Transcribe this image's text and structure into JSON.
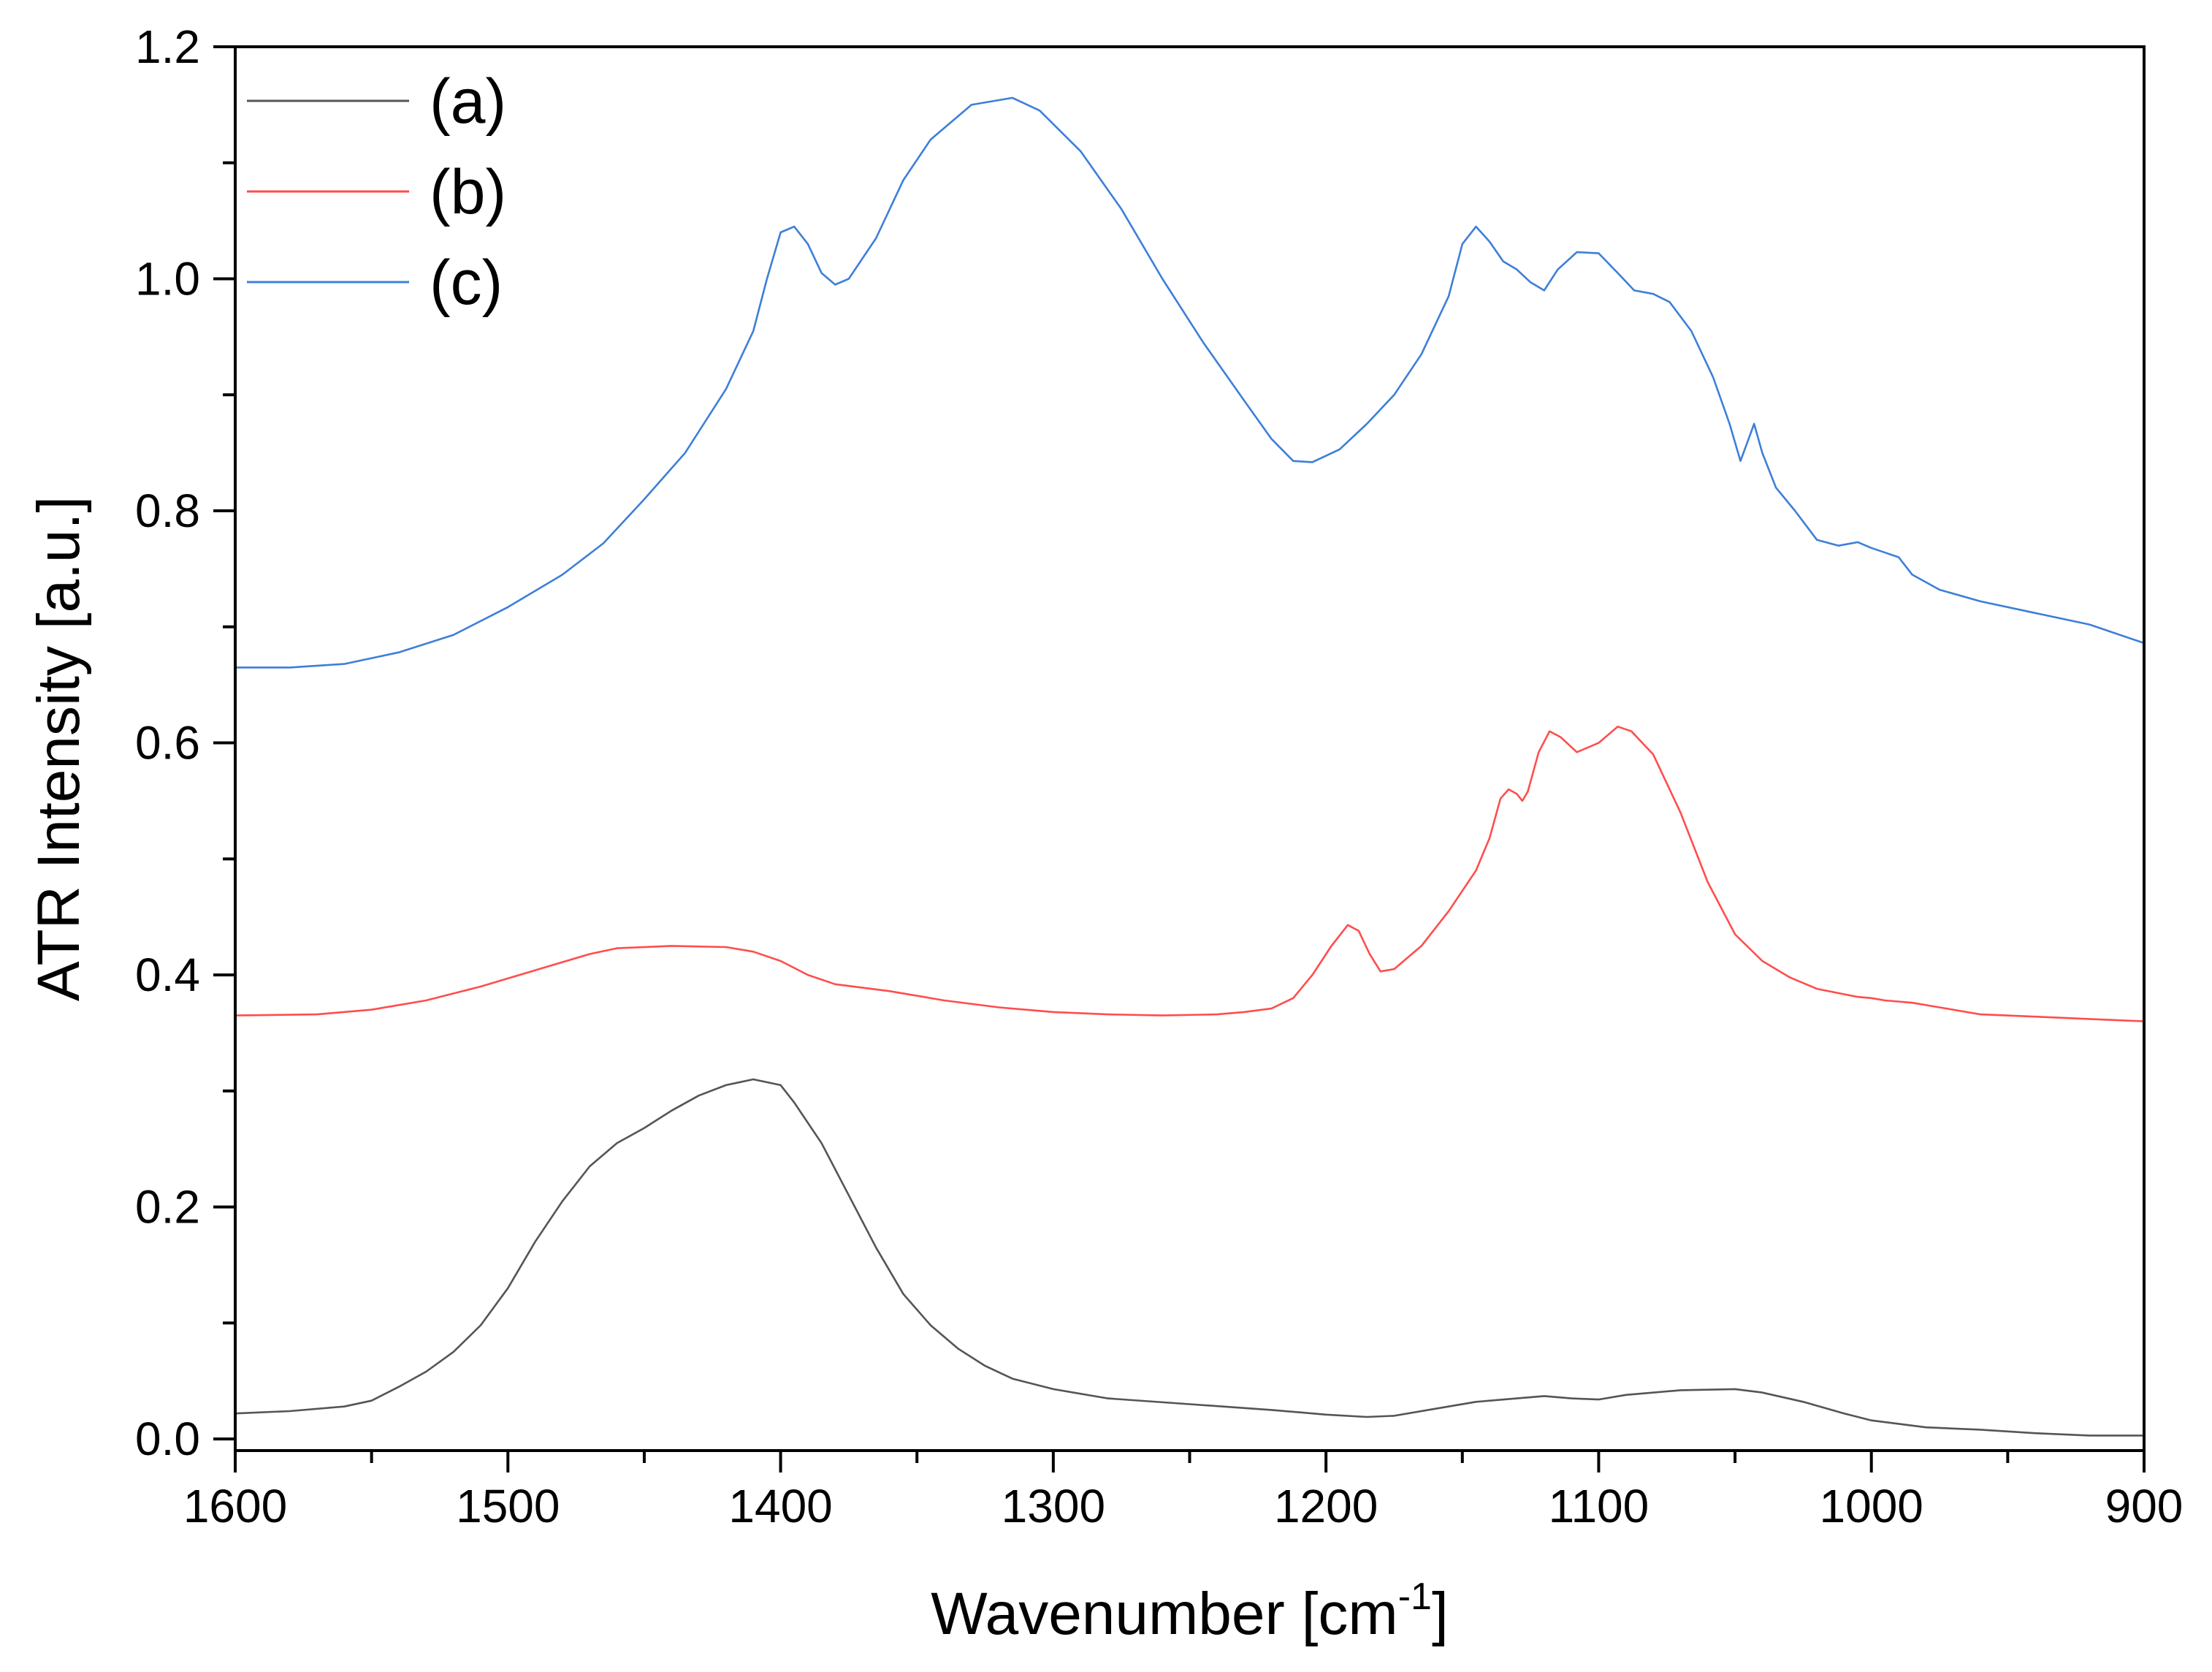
{
  "chart_data": {
    "type": "line",
    "xlabel": "Wavenumber [cm",
    "xlabel_sup": "-1",
    "xlabel_end": "]",
    "ylabel": "ATR Intensity [a.u.]",
    "xlim": [
      1600,
      900
    ],
    "ylim": [
      -0.01,
      1.2
    ],
    "x_reversed": true,
    "x_ticks": [
      1600,
      1500,
      1400,
      1300,
      1200,
      1100,
      1000,
      900
    ],
    "x_tick_labels": [
      "1600",
      "1500",
      "1400",
      "1300",
      "1200",
      "1100",
      "1000",
      "900"
    ],
    "y_ticks": [
      0.0,
      0.2,
      0.4,
      0.6,
      0.8,
      1.0,
      1.2
    ],
    "y_tick_labels": [
      "0.0",
      "0.2",
      "0.4",
      "0.6",
      "0.8",
      "1.0",
      "1.2"
    ],
    "grid": false,
    "legend_position": "top-left",
    "series": [
      {
        "name": "(a)",
        "color": "#555555",
        "points": [
          [
            1600,
            0.022
          ],
          [
            1580,
            0.024
          ],
          [
            1560,
            0.028
          ],
          [
            1550,
            0.033
          ],
          [
            1540,
            0.045
          ],
          [
            1530,
            0.058
          ],
          [
            1520,
            0.075
          ],
          [
            1510,
            0.098
          ],
          [
            1500,
            0.13
          ],
          [
            1490,
            0.17
          ],
          [
            1480,
            0.205
          ],
          [
            1470,
            0.235
          ],
          [
            1460,
            0.255
          ],
          [
            1450,
            0.268
          ],
          [
            1440,
            0.283
          ],
          [
            1430,
            0.296
          ],
          [
            1420,
            0.305
          ],
          [
            1410,
            0.31
          ],
          [
            1400,
            0.305
          ],
          [
            1395,
            0.29
          ],
          [
            1385,
            0.255
          ],
          [
            1375,
            0.21
          ],
          [
            1365,
            0.165
          ],
          [
            1355,
            0.125
          ],
          [
            1345,
            0.098
          ],
          [
            1335,
            0.078
          ],
          [
            1325,
            0.063
          ],
          [
            1315,
            0.052
          ],
          [
            1300,
            0.043
          ],
          [
            1280,
            0.035
          ],
          [
            1250,
            0.03
          ],
          [
            1220,
            0.025
          ],
          [
            1200,
            0.021
          ],
          [
            1185,
            0.019
          ],
          [
            1175,
            0.02
          ],
          [
            1160,
            0.026
          ],
          [
            1145,
            0.032
          ],
          [
            1130,
            0.035
          ],
          [
            1120,
            0.037
          ],
          [
            1110,
            0.035
          ],
          [
            1100,
            0.034
          ],
          [
            1090,
            0.038
          ],
          [
            1070,
            0.042
          ],
          [
            1050,
            0.043
          ],
          [
            1040,
            0.04
          ],
          [
            1025,
            0.032
          ],
          [
            1010,
            0.022
          ],
          [
            1000,
            0.016
          ],
          [
            980,
            0.01
          ],
          [
            960,
            0.008
          ],
          [
            940,
            0.005
          ],
          [
            920,
            0.003
          ],
          [
            900,
            0.003
          ]
        ]
      },
      {
        "name": "(b)",
        "color": "#ff4d4d",
        "points": [
          [
            1600,
            0.365
          ],
          [
            1570,
            0.366
          ],
          [
            1550,
            0.37
          ],
          [
            1530,
            0.378
          ],
          [
            1510,
            0.39
          ],
          [
            1490,
            0.404
          ],
          [
            1470,
            0.418
          ],
          [
            1460,
            0.423
          ],
          [
            1440,
            0.425
          ],
          [
            1420,
            0.424
          ],
          [
            1410,
            0.42
          ],
          [
            1400,
            0.412
          ],
          [
            1390,
            0.4
          ],
          [
            1380,
            0.392
          ],
          [
            1360,
            0.386
          ],
          [
            1340,
            0.378
          ],
          [
            1320,
            0.372
          ],
          [
            1300,
            0.368
          ],
          [
            1280,
            0.366
          ],
          [
            1260,
            0.365
          ],
          [
            1240,
            0.366
          ],
          [
            1230,
            0.368
          ],
          [
            1220,
            0.371
          ],
          [
            1212,
            0.38
          ],
          [
            1205,
            0.4
          ],
          [
            1198,
            0.425
          ],
          [
            1192,
            0.443
          ],
          [
            1188,
            0.438
          ],
          [
            1184,
            0.418
          ],
          [
            1180,
            0.403
          ],
          [
            1175,
            0.405
          ],
          [
            1165,
            0.425
          ],
          [
            1155,
            0.455
          ],
          [
            1145,
            0.49
          ],
          [
            1140,
            0.518
          ],
          [
            1136,
            0.552
          ],
          [
            1133,
            0.56
          ],
          [
            1130,
            0.556
          ],
          [
            1128,
            0.55
          ],
          [
            1126,
            0.558
          ],
          [
            1122,
            0.592
          ],
          [
            1118,
            0.61
          ],
          [
            1114,
            0.605
          ],
          [
            1108,
            0.592
          ],
          [
            1100,
            0.6
          ],
          [
            1093,
            0.614
          ],
          [
            1088,
            0.61
          ],
          [
            1080,
            0.59
          ],
          [
            1070,
            0.54
          ],
          [
            1060,
            0.48
          ],
          [
            1050,
            0.435
          ],
          [
            1040,
            0.412
          ],
          [
            1030,
            0.398
          ],
          [
            1020,
            0.388
          ],
          [
            1005,
            0.381
          ],
          [
            1000,
            0.38
          ],
          [
            995,
            0.378
          ],
          [
            985,
            0.376
          ],
          [
            980,
            0.374
          ],
          [
            975,
            0.372
          ],
          [
            960,
            0.366
          ],
          [
            940,
            0.364
          ],
          [
            920,
            0.362
          ],
          [
            900,
            0.36
          ]
        ]
      },
      {
        "name": "(c)",
        "color": "#3d7fd9",
        "points": [
          [
            1600,
            0.665
          ],
          [
            1580,
            0.665
          ],
          [
            1560,
            0.668
          ],
          [
            1540,
            0.678
          ],
          [
            1520,
            0.693
          ],
          [
            1500,
            0.717
          ],
          [
            1480,
            0.745
          ],
          [
            1465,
            0.772
          ],
          [
            1450,
            0.81
          ],
          [
            1435,
            0.85
          ],
          [
            1420,
            0.905
          ],
          [
            1410,
            0.955
          ],
          [
            1405,
            1.0
          ],
          [
            1400,
            1.04
          ],
          [
            1395,
            1.045
          ],
          [
            1390,
            1.03
          ],
          [
            1385,
            1.005
          ],
          [
            1380,
            0.995
          ],
          [
            1375,
            1.0
          ],
          [
            1365,
            1.035
          ],
          [
            1355,
            1.085
          ],
          [
            1345,
            1.12
          ],
          [
            1330,
            1.15
          ],
          [
            1315,
            1.156
          ],
          [
            1305,
            1.145
          ],
          [
            1290,
            1.11
          ],
          [
            1275,
            1.06
          ],
          [
            1260,
            1.0
          ],
          [
            1245,
            0.945
          ],
          [
            1230,
            0.895
          ],
          [
            1220,
            0.862
          ],
          [
            1212,
            0.843
          ],
          [
            1205,
            0.842
          ],
          [
            1195,
            0.853
          ],
          [
            1185,
            0.875
          ],
          [
            1175,
            0.9
          ],
          [
            1165,
            0.935
          ],
          [
            1155,
            0.985
          ],
          [
            1150,
            1.03
          ],
          [
            1145,
            1.045
          ],
          [
            1140,
            1.032
          ],
          [
            1135,
            1.015
          ],
          [
            1130,
            1.008
          ],
          [
            1125,
            0.997
          ],
          [
            1120,
            0.99
          ],
          [
            1115,
            1.008
          ],
          [
            1108,
            1.023
          ],
          [
            1100,
            1.022
          ],
          [
            1093,
            1.005
          ],
          [
            1087,
            0.99
          ],
          [
            1080,
            0.987
          ],
          [
            1074,
            0.98
          ],
          [
            1066,
            0.955
          ],
          [
            1058,
            0.915
          ],
          [
            1052,
            0.875
          ],
          [
            1048,
            0.843
          ],
          [
            1045,
            0.862
          ],
          [
            1043,
            0.875
          ],
          [
            1040,
            0.85
          ],
          [
            1035,
            0.82
          ],
          [
            1028,
            0.8
          ],
          [
            1020,
            0.775
          ],
          [
            1012,
            0.77
          ],
          [
            1005,
            0.773
          ],
          [
            1000,
            0.768
          ],
          [
            995,
            0.764
          ],
          [
            990,
            0.76
          ],
          [
            985,
            0.745
          ],
          [
            975,
            0.732
          ],
          [
            960,
            0.722
          ],
          [
            940,
            0.712
          ],
          [
            920,
            0.702
          ],
          [
            900,
            0.686
          ]
        ]
      }
    ]
  }
}
